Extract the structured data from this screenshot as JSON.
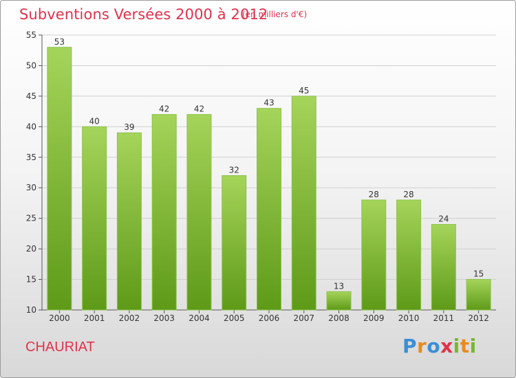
{
  "chart_data": {
    "type": "bar",
    "title": "Subventions Versées 2000 à 2012",
    "subtitle": "(en milliers d'€)",
    "categories": [
      "2000",
      "2001",
      "2002",
      "2003",
      "2004",
      "2005",
      "2006",
      "2007",
      "2008",
      "2009",
      "2010",
      "2011",
      "2012"
    ],
    "values": [
      53,
      40,
      39,
      42,
      42,
      32,
      43,
      45,
      13,
      28,
      28,
      24,
      15
    ],
    "ylim": [
      10,
      55
    ],
    "yticks": [
      10,
      15,
      20,
      25,
      30,
      35,
      40,
      45,
      50,
      55
    ],
    "grid": true,
    "bar_color_top": "#a5d45a",
    "bar_color_bottom": "#5e9a18"
  },
  "commune": "CHAURIAT",
  "logo": {
    "letters": [
      "P",
      "r",
      "o",
      "x",
      "i",
      "t",
      "i"
    ],
    "colors": [
      "#3a8fd6",
      "#e98a1f",
      "#3a8fd6",
      "#e0314b",
      "#7ab531",
      "#e98a1f",
      "#7ab531"
    ]
  },
  "colors": {
    "accent": "#e0314b",
    "grid": "#cfcfcf",
    "axis": "#555555"
  }
}
